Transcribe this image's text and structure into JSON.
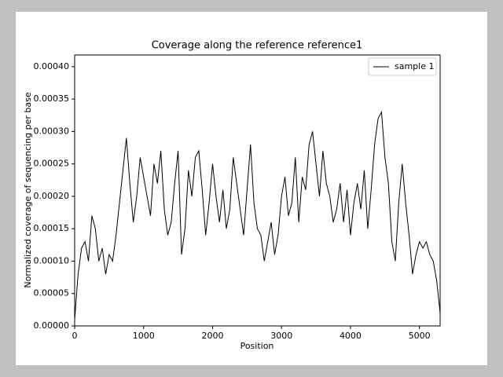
{
  "chart_data": {
    "type": "line",
    "title": "Coverage along the reference reference1",
    "xlabel": "Position",
    "ylabel": "Normalized coverage of sequencing per base",
    "x": [
      0,
      50,
      100,
      150,
      200,
      250,
      300,
      350,
      400,
      450,
      500,
      550,
      600,
      650,
      700,
      750,
      800,
      850,
      900,
      950,
      1000,
      1050,
      1100,
      1150,
      1200,
      1250,
      1300,
      1350,
      1400,
      1450,
      1500,
      1550,
      1600,
      1650,
      1700,
      1750,
      1800,
      1850,
      1900,
      1950,
      2000,
      2050,
      2100,
      2150,
      2200,
      2250,
      2300,
      2350,
      2400,
      2450,
      2500,
      2550,
      2600,
      2650,
      2700,
      2750,
      2800,
      2850,
      2900,
      2950,
      3000,
      3050,
      3100,
      3150,
      3200,
      3250,
      3300,
      3350,
      3400,
      3450,
      3500,
      3550,
      3600,
      3650,
      3700,
      3750,
      3800,
      3850,
      3900,
      3950,
      4000,
      4050,
      4100,
      4150,
      4200,
      4250,
      4300,
      4350,
      4400,
      4450,
      4500,
      4550,
      4600,
      4650,
      4700,
      4750,
      4800,
      4850,
      4900,
      4950,
      5000,
      5050,
      5100,
      5150,
      5200,
      5250,
      5300
    ],
    "series": [
      {
        "name": "sample 1",
        "color": "#000000",
        "values": [
          1e-05,
          8e-05,
          0.00012,
          0.00013,
          0.0001,
          0.00017,
          0.00015,
          0.0001,
          0.00012,
          8e-05,
          0.00011,
          0.0001,
          0.00014,
          0.00019,
          0.00024,
          0.00029,
          0.00022,
          0.00016,
          0.0002,
          0.00026,
          0.00023,
          0.0002,
          0.00017,
          0.00025,
          0.00022,
          0.00027,
          0.00018,
          0.00014,
          0.00016,
          0.00022,
          0.00027,
          0.00011,
          0.00015,
          0.00024,
          0.0002,
          0.00026,
          0.00027,
          0.00021,
          0.00014,
          0.00019,
          0.00025,
          0.0002,
          0.00016,
          0.00021,
          0.00015,
          0.00018,
          0.00026,
          0.00022,
          0.00018,
          0.00014,
          0.00021,
          0.00028,
          0.00019,
          0.00015,
          0.00014,
          0.0001,
          0.00013,
          0.00016,
          0.00011,
          0.00014,
          0.0002,
          0.00023,
          0.00017,
          0.00019,
          0.00026,
          0.00016,
          0.00023,
          0.00021,
          0.00028,
          0.0003,
          0.00025,
          0.0002,
          0.00027,
          0.00022,
          0.0002,
          0.00016,
          0.00018,
          0.00022,
          0.00016,
          0.00021,
          0.00014,
          0.00019,
          0.00022,
          0.00018,
          0.00024,
          0.00015,
          0.00021,
          0.00028,
          0.00032,
          0.00033,
          0.00026,
          0.00022,
          0.00013,
          0.0001,
          0.00019,
          0.00025,
          0.00019,
          0.00014,
          8e-05,
          0.00011,
          0.00013,
          0.00012,
          0.00013,
          0.00011,
          0.0001,
          7e-05,
          2e-05
        ]
      }
    ],
    "xlim": [
      0,
      5300
    ],
    "xticks": [
      0,
      1000,
      2000,
      3000,
      4000,
      5000
    ],
    "ylim": [
      0,
      0.000418
    ],
    "yticks": [
      {
        "value": 0,
        "label": "0.00000"
      },
      {
        "value": 5e-05,
        "label": "0.00005"
      },
      {
        "value": 0.0001,
        "label": "0.00010"
      },
      {
        "value": 0.00015,
        "label": "0.00015"
      },
      {
        "value": 0.0002,
        "label": "0.00020"
      },
      {
        "value": 0.00025,
        "label": "0.00025"
      },
      {
        "value": 0.0003,
        "label": "0.00030"
      },
      {
        "value": 0.00035,
        "label": "0.00035"
      },
      {
        "value": 0.0004,
        "label": "0.00040"
      }
    ],
    "grid": false,
    "legend": "upper right"
  }
}
